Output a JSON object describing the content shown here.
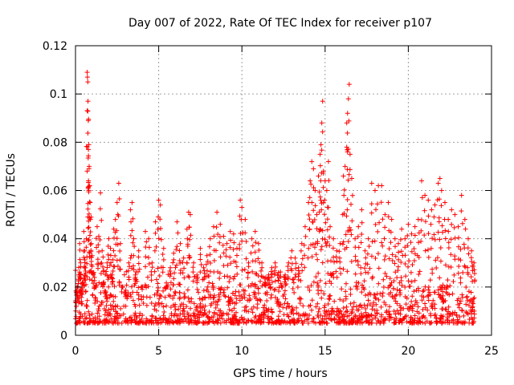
{
  "chart_data": {
    "type": "scatter",
    "title": "Day 007 of 2022, Rate Of TEC Index for receiver p107",
    "xlabel": "GPS time / hours",
    "ylabel": "ROTI / TECUs",
    "xlim": [
      0,
      25
    ],
    "ylim": [
      0,
      0.12
    ],
    "xticks": [
      0,
      5,
      10,
      15,
      20,
      25
    ],
    "xtick_labels": [
      "0",
      "5",
      "10",
      "15",
      "20",
      "25"
    ],
    "yticks": [
      0,
      0.02,
      0.04,
      0.06,
      0.08,
      0.1,
      0.12
    ],
    "ytick_labels": [
      "0",
      "0.02",
      "0.04",
      "0.06",
      "0.08",
      "0.1",
      "0.12"
    ],
    "grid": true,
    "marker": "plus",
    "color": "#ff0000",
    "series": [
      {
        "name": "ROTI",
        "points": [
          [
            0.05,
            0.012
          ],
          [
            0.1,
            0.015
          ],
          [
            0.15,
            0.02
          ],
          [
            0.2,
            0.025
          ],
          [
            0.25,
            0.038
          ],
          [
            0.3,
            0.03
          ],
          [
            0.35,
            0.018
          ],
          [
            0.4,
            0.013
          ],
          [
            0.45,
            0.022
          ],
          [
            0.5,
            0.043
          ],
          [
            0.55,
            0.035
          ],
          [
            0.6,
            0.028
          ],
          [
            0.65,
            0.04
          ],
          [
            0.7,
            0.109
          ],
          [
            0.72,
            0.107
          ],
          [
            0.74,
            0.105
          ],
          [
            0.75,
            0.097
          ],
          [
            0.77,
            0.089
          ],
          [
            0.8,
            0.079
          ],
          [
            0.82,
            0.07
          ],
          [
            0.85,
            0.062
          ],
          [
            0.88,
            0.055
          ],
          [
            0.9,
            0.048
          ],
          [
            0.95,
            0.038
          ],
          [
            1.0,
            0.033
          ],
          [
            1.1,
            0.026
          ],
          [
            1.2,
            0.02
          ],
          [
            1.3,
            0.045
          ],
          [
            1.4,
            0.041
          ],
          [
            1.5,
            0.059
          ],
          [
            1.6,
            0.035
          ],
          [
            1.7,
            0.022
          ],
          [
            1.8,
            0.016
          ],
          [
            1.9,
            0.03
          ],
          [
            2.0,
            0.04
          ],
          [
            2.1,
            0.036
          ],
          [
            2.2,
            0.025
          ],
          [
            2.3,
            0.044
          ],
          [
            2.4,
            0.048
          ],
          [
            2.5,
            0.055
          ],
          [
            2.6,
            0.063
          ],
          [
            2.7,
            0.038
          ],
          [
            2.8,
            0.02
          ],
          [
            3.0,
            0.016
          ],
          [
            3.2,
            0.03
          ],
          [
            3.3,
            0.052
          ],
          [
            3.4,
            0.055
          ],
          [
            3.5,
            0.04
          ],
          [
            3.6,
            0.025
          ],
          [
            3.8,
            0.035
          ],
          [
            4.0,
            0.02
          ],
          [
            4.2,
            0.043
          ],
          [
            4.4,
            0.04
          ],
          [
            4.6,
            0.03
          ],
          [
            4.8,
            0.047
          ],
          [
            5.0,
            0.056
          ],
          [
            5.1,
            0.054
          ],
          [
            5.3,
            0.036
          ],
          [
            5.5,
            0.02
          ],
          [
            5.7,
            0.028
          ],
          [
            5.9,
            0.034
          ],
          [
            6.1,
            0.047
          ],
          [
            6.3,
            0.038
          ],
          [
            6.5,
            0.032
          ],
          [
            6.7,
            0.044
          ],
          [
            6.8,
            0.051
          ],
          [
            6.9,
            0.05
          ],
          [
            7.1,
            0.03
          ],
          [
            7.3,
            0.025
          ],
          [
            7.5,
            0.036
          ],
          [
            7.7,
            0.028
          ],
          [
            7.9,
            0.033
          ],
          [
            8.1,
            0.04
          ],
          [
            8.3,
            0.045
          ],
          [
            8.5,
            0.051
          ],
          [
            8.7,
            0.046
          ],
          [
            8.9,
            0.041
          ],
          [
            9.1,
            0.038
          ],
          [
            9.3,
            0.043
          ],
          [
            9.5,
            0.042
          ],
          [
            9.7,
            0.036
          ],
          [
            9.9,
            0.056
          ],
          [
            10.0,
            0.053
          ],
          [
            10.2,
            0.048
          ],
          [
            10.4,
            0.03
          ],
          [
            10.6,
            0.04
          ],
          [
            10.8,
            0.043
          ],
          [
            11.0,
            0.038
          ],
          [
            11.2,
            0.03
          ],
          [
            11.4,
            0.022
          ],
          [
            11.6,
            0.025
          ],
          [
            11.8,
            0.028
          ],
          [
            12.0,
            0.03
          ],
          [
            12.2,
            0.026
          ],
          [
            12.4,
            0.02
          ],
          [
            12.6,
            0.025
          ],
          [
            12.8,
            0.03
          ],
          [
            13.0,
            0.035
          ],
          [
            13.2,
            0.032
          ],
          [
            13.4,
            0.028
          ],
          [
            13.6,
            0.038
          ],
          [
            13.8,
            0.045
          ],
          [
            14.0,
            0.055
          ],
          [
            14.1,
            0.064
          ],
          [
            14.2,
            0.072
          ],
          [
            14.3,
            0.069
          ],
          [
            14.4,
            0.06
          ],
          [
            14.5,
            0.05
          ],
          [
            14.6,
            0.066
          ],
          [
            14.7,
            0.075
          ],
          [
            14.75,
            0.079
          ],
          [
            14.8,
            0.088
          ],
          [
            14.85,
            0.097
          ],
          [
            14.9,
            0.068
          ],
          [
            15.0,
            0.064
          ],
          [
            15.1,
            0.06
          ],
          [
            15.2,
            0.072
          ],
          [
            15.3,
            0.045
          ],
          [
            15.5,
            0.04
          ],
          [
            15.7,
            0.035
          ],
          [
            15.9,
            0.038
          ],
          [
            16.1,
            0.066
          ],
          [
            16.2,
            0.07
          ],
          [
            16.3,
            0.088
          ],
          [
            16.35,
            0.092
          ],
          [
            16.4,
            0.098
          ],
          [
            16.45,
            0.104
          ],
          [
            16.5,
            0.075
          ],
          [
            16.6,
            0.065
          ],
          [
            16.8,
            0.04
          ],
          [
            17.0,
            0.045
          ],
          [
            17.2,
            0.052
          ],
          [
            17.4,
            0.035
          ],
          [
            17.6,
            0.04
          ],
          [
            17.8,
            0.063
          ],
          [
            18.0,
            0.06
          ],
          [
            18.2,
            0.062
          ],
          [
            18.4,
            0.062
          ],
          [
            18.6,
            0.05
          ],
          [
            18.8,
            0.055
          ],
          [
            19.0,
            0.048
          ],
          [
            19.2,
            0.04
          ],
          [
            19.4,
            0.038
          ],
          [
            19.6,
            0.044
          ],
          [
            19.8,
            0.04
          ],
          [
            20.0,
            0.046
          ],
          [
            20.2,
            0.042
          ],
          [
            20.4,
            0.045
          ],
          [
            20.6,
            0.048
          ],
          [
            20.8,
            0.064
          ],
          [
            21.0,
            0.058
          ],
          [
            21.2,
            0.056
          ],
          [
            21.4,
            0.052
          ],
          [
            21.6,
            0.054
          ],
          [
            21.8,
            0.063
          ],
          [
            21.9,
            0.065
          ],
          [
            22.0,
            0.06
          ],
          [
            22.2,
            0.055
          ],
          [
            22.4,
            0.048
          ],
          [
            22.6,
            0.052
          ],
          [
            22.8,
            0.05
          ],
          [
            23.0,
            0.045
          ],
          [
            23.2,
            0.058
          ],
          [
            23.4,
            0.048
          ],
          [
            23.6,
            0.04
          ],
          [
            23.8,
            0.035
          ],
          [
            23.95,
            0.03
          ]
        ],
        "baseline_band": [
          0.005,
          0.03
        ]
      }
    ]
  }
}
